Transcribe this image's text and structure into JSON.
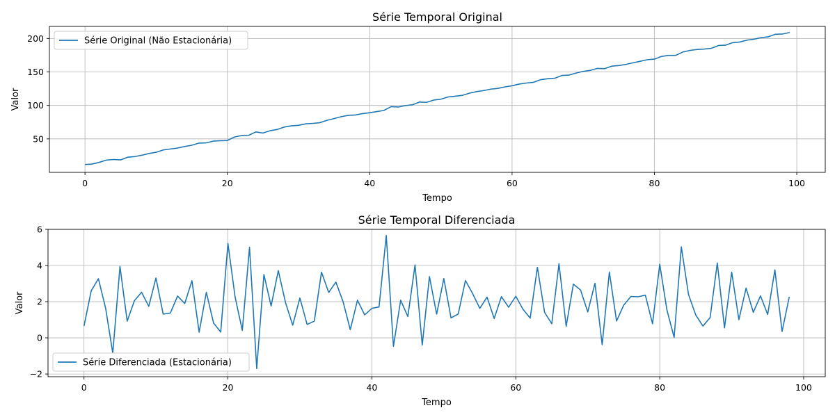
{
  "chart_data": [
    {
      "type": "line",
      "title": "Série Temporal Original",
      "xlabel": "Tempo",
      "ylabel": "Valor",
      "xlim": [
        -5,
        104
      ],
      "ylim": [
        0,
        218
      ],
      "xticks": [
        0,
        20,
        40,
        60,
        80,
        100
      ],
      "yticks": [
        50,
        100,
        150,
        200
      ],
      "grid": true,
      "legend_position": "top-left",
      "color": "#1f77b4",
      "series": [
        {
          "name": "Série Original (Não Estacionária)",
          "x_start": 0,
          "values": [
            11.7,
            12.4,
            15.0,
            18.3,
            19.2,
            18.6,
            22.6,
            23.6,
            25.6,
            28.2,
            30.0,
            33.5,
            34.9,
            36.3,
            38.6,
            40.5,
            43.7,
            44.0,
            46.6,
            47.3,
            47.6,
            52.8,
            55.0,
            55.4,
            60.4,
            58.7,
            62.2,
            64.0,
            67.7,
            69.5,
            70.3,
            72.5,
            73.2,
            74.2,
            77.7,
            80.3,
            83.2,
            85.2,
            85.7,
            87.8,
            89.1,
            90.8,
            92.5,
            98.2,
            97.6,
            99.7,
            100.9,
            105.0,
            104.6,
            108.0,
            109.3,
            112.6,
            113.7,
            115.0,
            118.2,
            120.6,
            122.1,
            124.3,
            125.4,
            127.7,
            129.3,
            131.9,
            133.4,
            134.5,
            138.4,
            139.8,
            140.6,
            144.7,
            145.3,
            148.3,
            150.9,
            152.3,
            155.3,
            154.9,
            158.6,
            159.5,
            161.3,
            163.6,
            165.9,
            168.3,
            169.1,
            173.2,
            174.7,
            174.7,
            179.8,
            182.2,
            183.5,
            184.2,
            185.3,
            189.5,
            190.0,
            193.7,
            194.7,
            197.5,
            198.9,
            201.2,
            202.5,
            206.3,
            206.6,
            208.9
          ]
        }
      ]
    },
    {
      "type": "line",
      "title": "Série Temporal Diferenciada",
      "xlabel": "Tempo",
      "ylabel": "Valor",
      "xlim": [
        -5,
        103
      ],
      "ylim": [
        -2.15,
        6.0
      ],
      "xticks": [
        0,
        20,
        40,
        60,
        80,
        100
      ],
      "yticks": [
        -2,
        0,
        2,
        4,
        6
      ],
      "grid": true,
      "legend_position": "bottom-left",
      "color": "#1f77b4",
      "series": [
        {
          "name": "Série Diferenciada (Estacionária)",
          "x_start": 0,
          "values": [
            0.65,
            2.6,
            3.27,
            1.65,
            -0.85,
            3.95,
            0.92,
            2.05,
            2.52,
            1.74,
            3.31,
            1.31,
            1.37,
            2.31,
            1.9,
            3.16,
            0.31,
            2.52,
            0.82,
            0.32,
            5.22,
            2.25,
            0.41,
            5.01,
            -1.7,
            3.5,
            1.76,
            3.72,
            1.95,
            0.7,
            2.2,
            0.74,
            0.92,
            3.63,
            2.51,
            3.08,
            2.0,
            0.45,
            2.08,
            1.27,
            1.63,
            1.71,
            5.66,
            -0.47,
            2.08,
            1.18,
            4.03,
            -0.4,
            3.39,
            1.31,
            3.28,
            1.1,
            1.32,
            3.17,
            2.45,
            1.63,
            2.25,
            1.07,
            2.28,
            1.69,
            2.3,
            1.58,
            1.09,
            3.9,
            1.41,
            0.78,
            4.1,
            0.64,
            2.97,
            2.64,
            1.43,
            3.02,
            -0.38,
            3.64,
            0.93,
            1.81,
            2.29,
            2.27,
            2.36,
            0.78,
            4.07,
            1.54,
            0.02,
            5.03,
            2.39,
            1.27,
            0.65,
            1.12,
            4.14,
            0.55,
            3.63,
            1.0,
            2.75,
            1.41,
            2.32,
            1.29,
            3.76,
            0.35,
            2.27
          ]
        }
      ]
    }
  ]
}
